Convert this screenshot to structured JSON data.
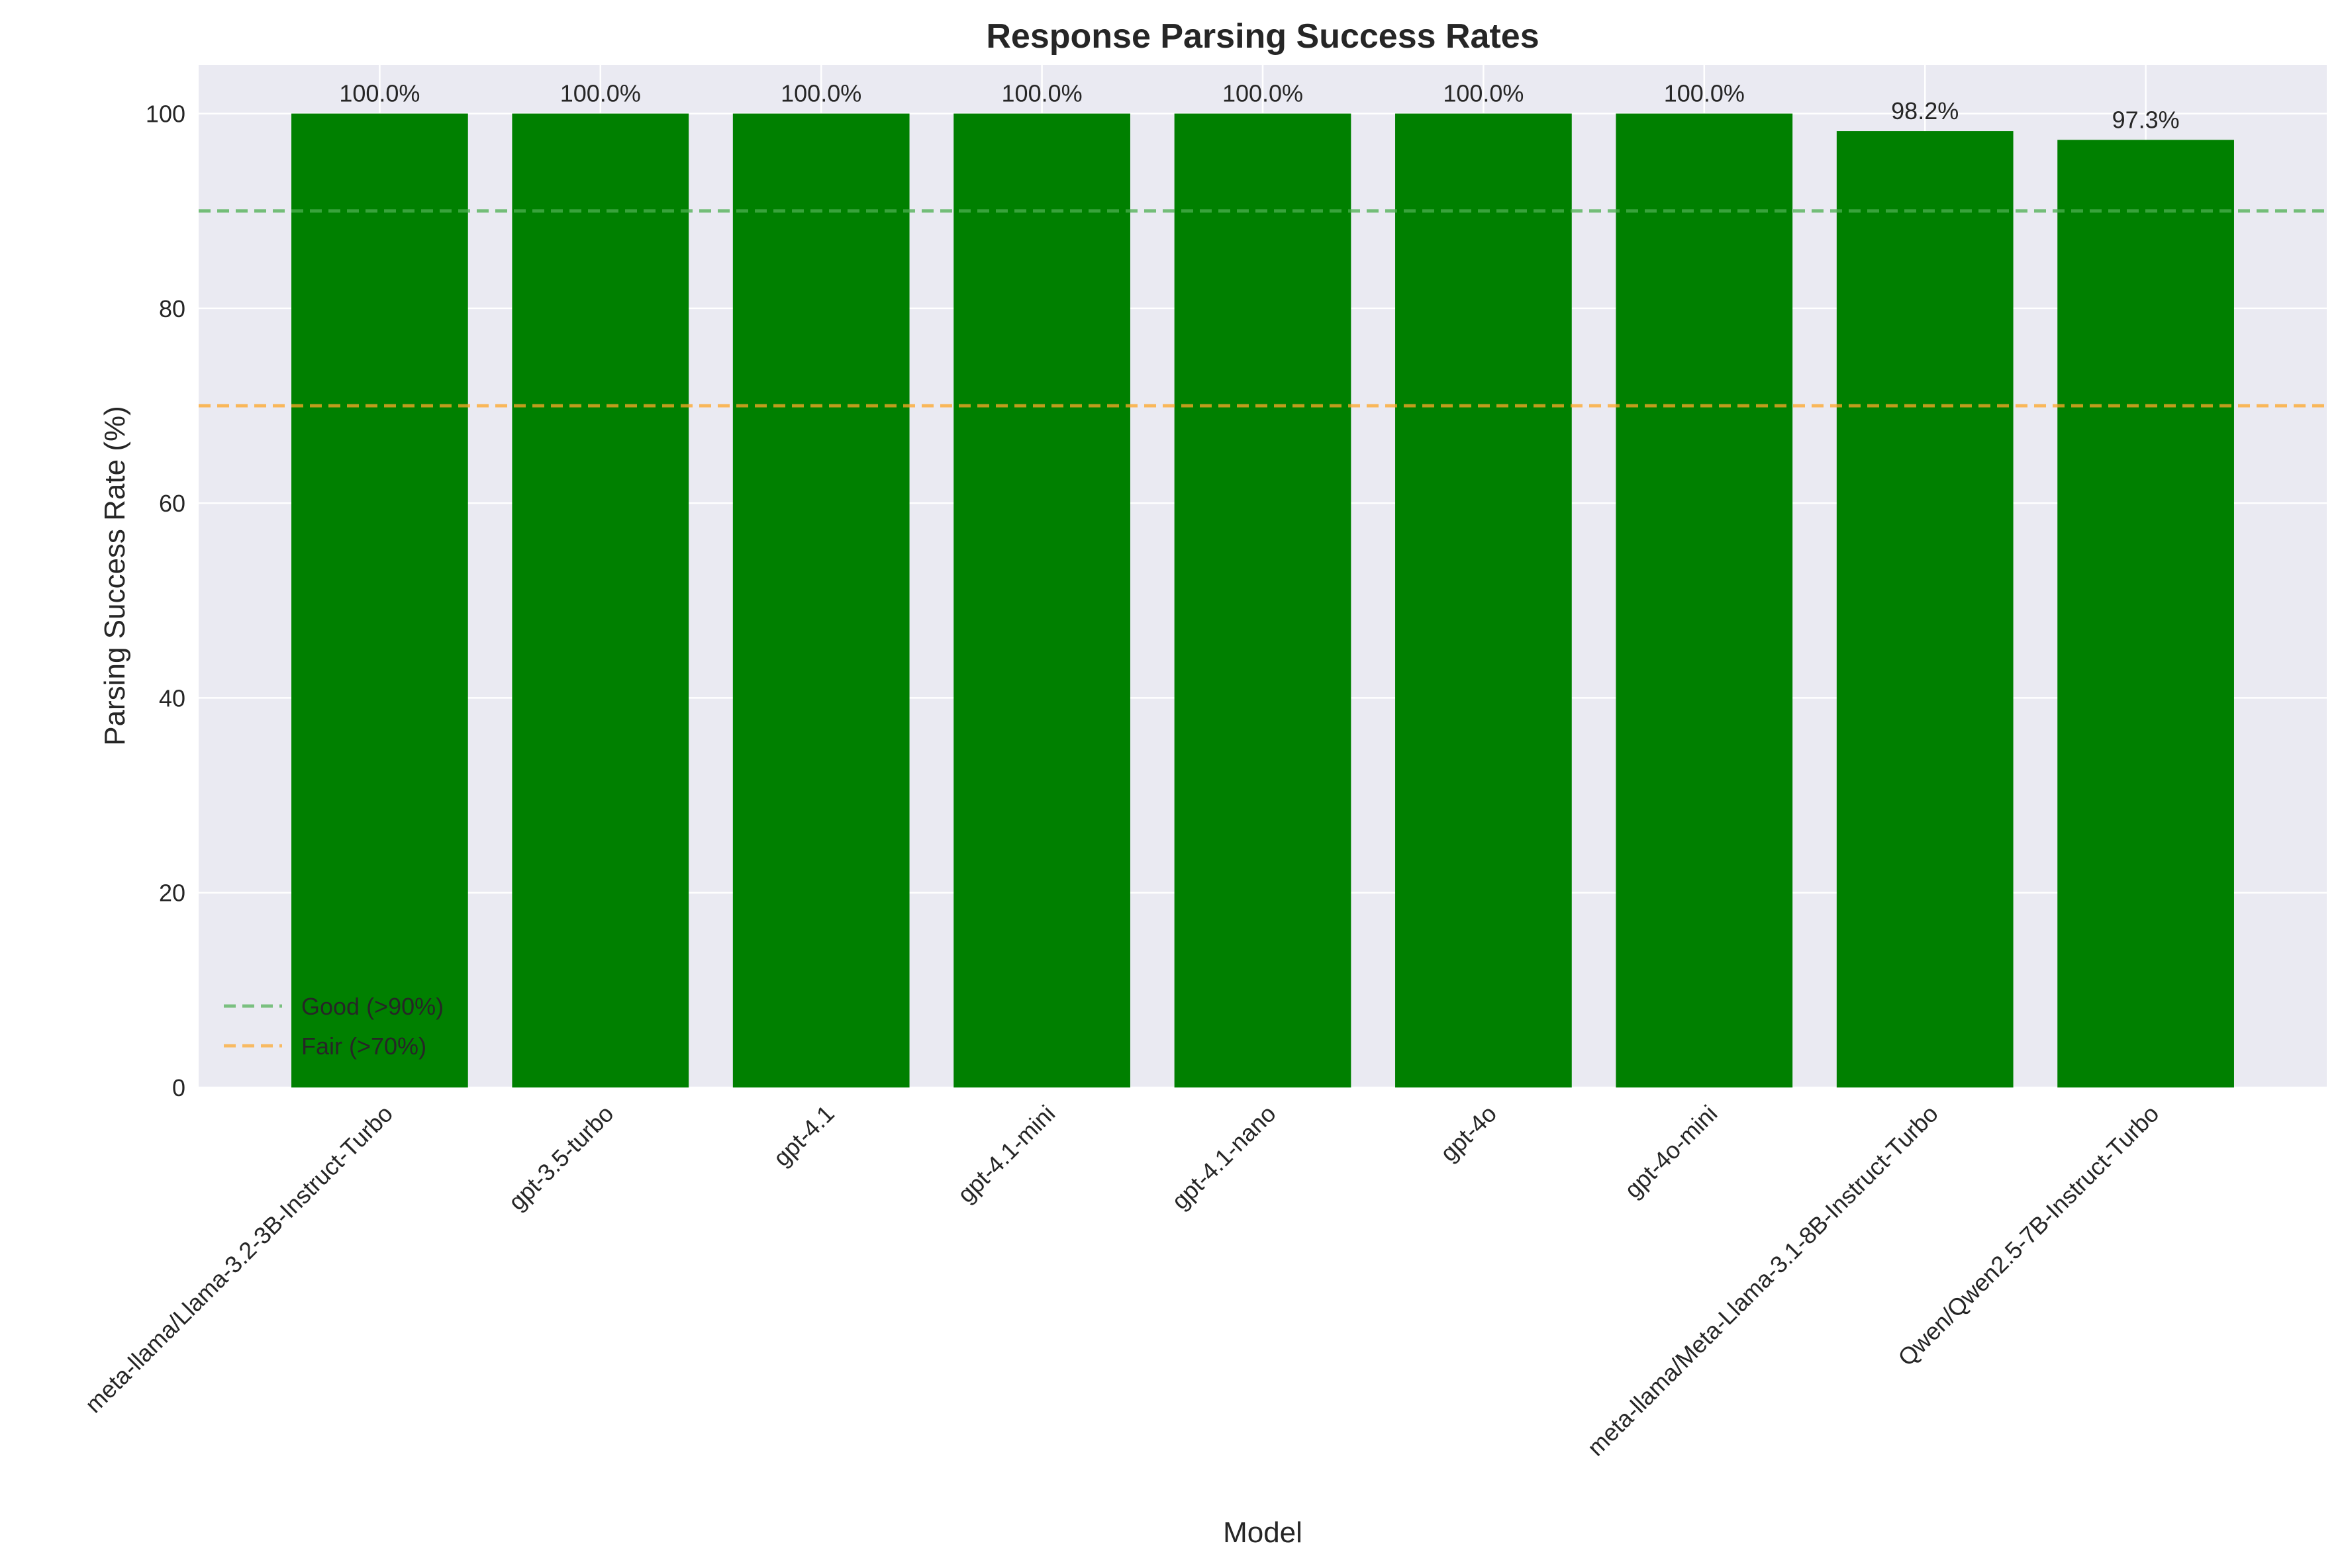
{
  "chart_data": {
    "type": "bar",
    "title": "Response Parsing Success Rates",
    "xlabel": "Model",
    "ylabel": "Parsing Success Rate (%)",
    "ylim": [
      0,
      105
    ],
    "yticks": [
      0,
      20,
      40,
      60,
      80,
      100
    ],
    "grid": true,
    "categories": [
      "meta-llama/Llama-3.2-3B-Instruct-Turbo",
      "gpt-3.5-turbo",
      "gpt-4.1",
      "gpt-4.1-mini",
      "gpt-4.1-nano",
      "gpt-4o",
      "gpt-4o-mini",
      "meta-llama/Meta-Llama-3.1-8B-Instruct-Turbo",
      "Qwen/Qwen2.5-7B-Instruct-Turbo"
    ],
    "values": [
      100.0,
      100.0,
      100.0,
      100.0,
      100.0,
      100.0,
      100.0,
      98.2,
      97.3
    ],
    "data_labels": [
      "100.0%",
      "100.0%",
      "100.0%",
      "100.0%",
      "100.0%",
      "100.0%",
      "100.0%",
      "98.2%",
      "97.3%"
    ],
    "bar_color": "#008000",
    "reference_lines": [
      {
        "name": "Good (>90%)",
        "value": 90,
        "color": "#4caf50",
        "style": "dashed"
      },
      {
        "name": "Fair (>70%)",
        "value": 70,
        "color": "#ffa726",
        "style": "dashed"
      }
    ],
    "legend_position": "lower-left",
    "background_color": "#eaeaf2"
  }
}
